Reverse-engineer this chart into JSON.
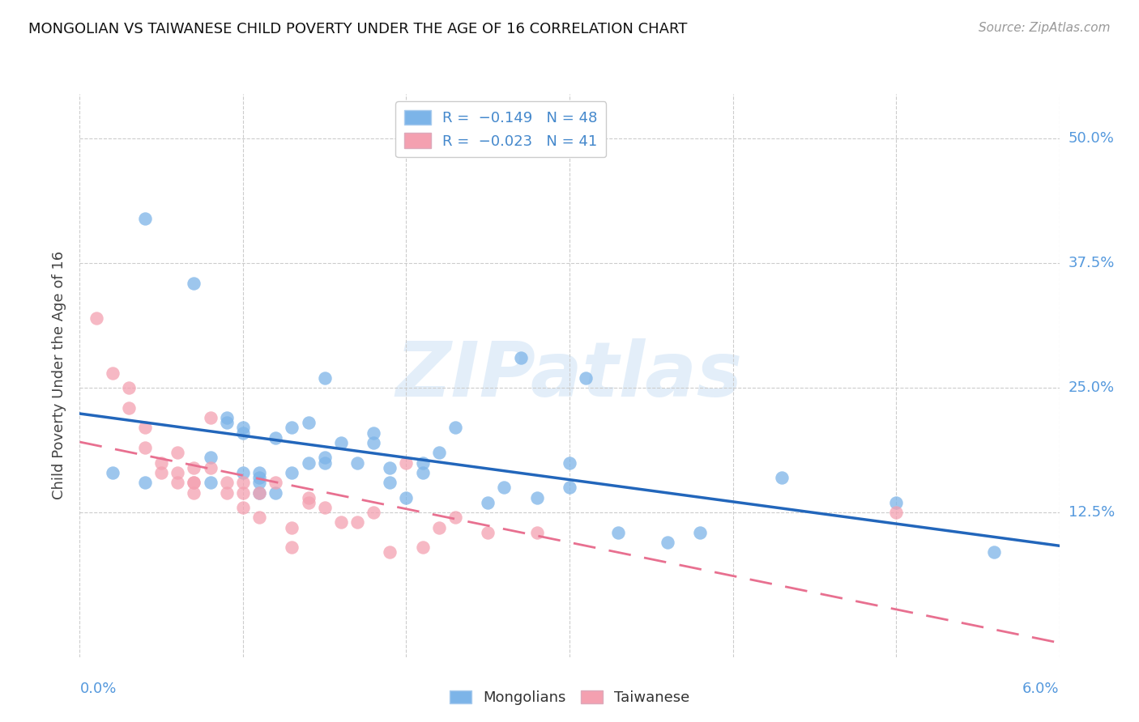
{
  "title": "MONGOLIAN VS TAIWANESE CHILD POVERTY UNDER THE AGE OF 16 CORRELATION CHART",
  "source": "Source: ZipAtlas.com",
  "ylabel": "Child Poverty Under the Age of 16",
  "yticks": [
    "50.0%",
    "37.5%",
    "25.0%",
    "12.5%"
  ],
  "ytick_vals": [
    0.5,
    0.375,
    0.25,
    0.125
  ],
  "xlim": [
    0.0,
    0.06
  ],
  "ylim": [
    -0.02,
    0.545
  ],
  "mongolian_R": -0.149,
  "mongolian_N": 48,
  "taiwanese_R": -0.023,
  "taiwanese_N": 41,
  "mongolian_color": "#7cb4e8",
  "taiwanese_color": "#f4a0b0",
  "mongolian_line_color": "#2266bb",
  "taiwanese_line_color": "#e87090",
  "background_color": "#ffffff",
  "grid_color": "#cccccc",
  "mongolian_x": [
    0.002,
    0.004,
    0.007,
    0.004,
    0.008,
    0.008,
    0.009,
    0.009,
    0.01,
    0.01,
    0.01,
    0.011,
    0.011,
    0.011,
    0.011,
    0.012,
    0.012,
    0.013,
    0.013,
    0.014,
    0.014,
    0.015,
    0.015,
    0.015,
    0.016,
    0.017,
    0.018,
    0.018,
    0.019,
    0.019,
    0.02,
    0.021,
    0.021,
    0.022,
    0.023,
    0.025,
    0.026,
    0.027,
    0.028,
    0.03,
    0.03,
    0.031,
    0.033,
    0.036,
    0.038,
    0.043,
    0.05,
    0.056
  ],
  "mongolian_y": [
    0.165,
    0.42,
    0.355,
    0.155,
    0.155,
    0.18,
    0.22,
    0.215,
    0.205,
    0.21,
    0.165,
    0.145,
    0.155,
    0.16,
    0.165,
    0.145,
    0.2,
    0.21,
    0.165,
    0.175,
    0.215,
    0.175,
    0.18,
    0.26,
    0.195,
    0.175,
    0.205,
    0.195,
    0.17,
    0.155,
    0.14,
    0.175,
    0.165,
    0.185,
    0.21,
    0.135,
    0.15,
    0.28,
    0.14,
    0.15,
    0.175,
    0.26,
    0.105,
    0.095,
    0.105,
    0.16,
    0.135,
    0.085
  ],
  "taiwanese_x": [
    0.001,
    0.002,
    0.003,
    0.003,
    0.004,
    0.004,
    0.005,
    0.005,
    0.006,
    0.006,
    0.006,
    0.007,
    0.007,
    0.007,
    0.007,
    0.008,
    0.008,
    0.009,
    0.009,
    0.01,
    0.01,
    0.01,
    0.011,
    0.011,
    0.012,
    0.013,
    0.013,
    0.014,
    0.014,
    0.015,
    0.016,
    0.017,
    0.018,
    0.019,
    0.02,
    0.021,
    0.022,
    0.023,
    0.025,
    0.028,
    0.05
  ],
  "taiwanese_y": [
    0.32,
    0.265,
    0.25,
    0.23,
    0.21,
    0.19,
    0.165,
    0.175,
    0.155,
    0.165,
    0.185,
    0.17,
    0.155,
    0.155,
    0.145,
    0.17,
    0.22,
    0.145,
    0.155,
    0.13,
    0.155,
    0.145,
    0.12,
    0.145,
    0.155,
    0.09,
    0.11,
    0.14,
    0.135,
    0.13,
    0.115,
    0.115,
    0.125,
    0.085,
    0.175,
    0.09,
    0.11,
    0.12,
    0.105,
    0.105,
    0.125
  ],
  "legend_mongolians": "Mongolians",
  "legend_taiwanese": "Taiwanese"
}
